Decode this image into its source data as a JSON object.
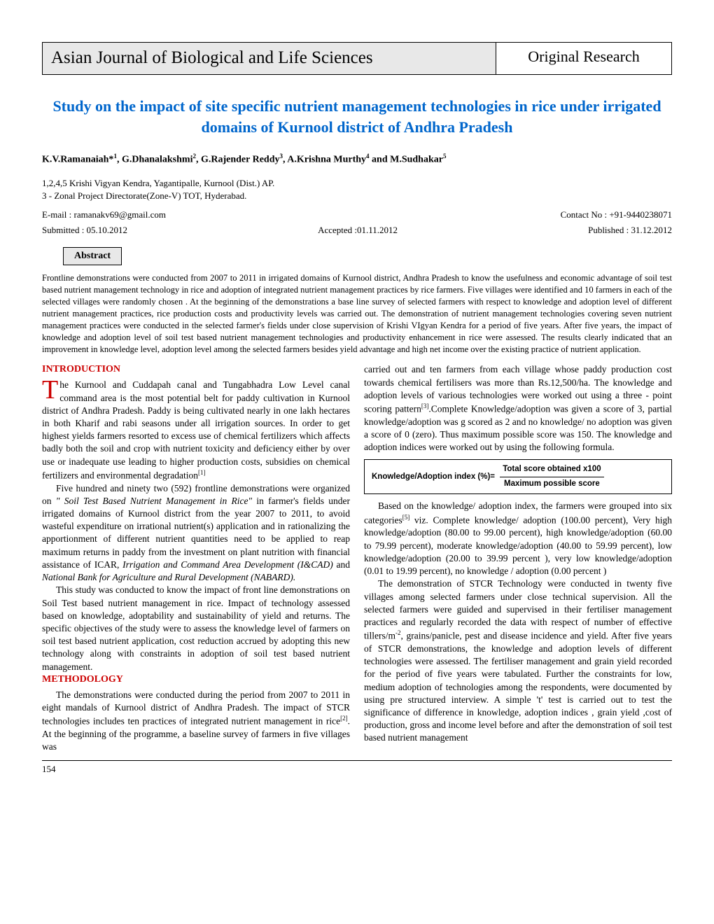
{
  "journal": {
    "name": "Asian Journal of Biological and Life Sciences",
    "category": "Original Research"
  },
  "article": {
    "title": "Study on the impact of site specific nutrient management technologies in rice under irrigated domains of Kurnool district of Andhra Pradesh",
    "authors_html": "K.V.Ramanaiah*<sup>1</sup>, G.Dhanalakshmi<sup>2</sup>, G.Rajender Reddy<sup>3</sup>, A.Krishna Murthy<sup>4</sup> and M.Sudhakar<sup>5</sup>",
    "affiliations": "1,2,4,5 Krishi Vigyan Kendra, Yagantipalle, Kurnool (Dist.) AP.\n3 - Zonal Project Directorate(Zone-V) TOT, Hyderabad.",
    "email": "E-mail : ramanakv69@gmail.com",
    "contact": "Contact No : +91-9440238071",
    "submitted": "Submitted : 05.10.2012",
    "accepted": "Accepted :01.11.2012",
    "published": "Published : 31.12.2012"
  },
  "abstract": {
    "label": "Abstract",
    "text": "Frontline demonstrations were conducted from 2007 to 2011 in irrigated domains of Kurnool district, Andhra Pradesh to know the usefulness and economic advantage of soil test based nutrient management technology in rice and adoption of integrated nutrient management practices by rice farmers. Five villages were identified and 10 farmers in each of the selected villages were randomly chosen . At the beginning of the demonstrations a base line survey of selected farmers with respect to knowledge and adoption level of different nutrient management practices, rice production costs and productivity levels was carried out. The demonstration of nutrient management technologies covering seven nutrient management practices were conducted in the selected farmer's fields under close supervision of Krishi VIgyan Kendra for a period of five years. After five years, the impact of knowledge and adoption level of soil test based nutrient management technologies and productivity enhancement in rice were assessed. The results clearly indicated that an improvement in knowledge level, adoption level among the selected farmers besides yield advantage and high net income over the existing practice of nutrient application."
  },
  "sections": {
    "introduction_heading": "INTRODUCTION",
    "methodology_heading": "METHODOLOGY"
  },
  "body": {
    "intro_p1": "he Kurnool and Cuddapah canal and Tungabhadra Low Level canal command area is the most potential belt for paddy cultivation in Kurnool district of Andhra Pradesh. Paddy is being cultivated nearly in one lakh hectares in both Kharif and rabi seasons under all irrigation sources. In order to get highest yields farmers resorted to excess use of chemical fertilizers which affects badly both the soil and crop with nutrient toxicity and deficiency either by over use or inadequate use leading to higher production costs, subsidies on chemical fertilizers and environmental degradation",
    "intro_p2_html": "Five hundred and ninety two (592) frontline demonstrations were organized on <em>\" Soil Test Based Nutrient Management in Rice\"</em> in farmer's fields under irrigated domains of Kurnool district from the year 2007 to 2011, to avoid wasteful expenditure on irrational nutrient(s) application and in rationalizing the apportionment of different nutrient quantities need to be applied to reap maximum returns in paddy from the investment on plant nutrition with financial assistance of ICAR, <em>Irrigation and Command Area Development (I&CAD)</em> and <em>National Bank for Agriculture and Rural Development (NABARD).</em>",
    "intro_p3": "This study was conducted to know the impact of front line demonstrations on Soil Test based nutrient management in rice. Impact of technology assessed based on knowledge, adoptability and sustainability of yield and returns. The specific objectives of the study were to assess the knowledge level of farmers on soil test based nutrient application, cost reduction accrued by adopting this new technology along with constraints in adoption of soil test based nutrient management.",
    "method_p1_html": "The demonstrations were conducted during the period from 2007 to 2011 in eight mandals of Kurnool district of Andhra Pradesh. The impact of STCR technologies includes ten practices of integrated nutrient management in rice<sup>[2]</sup>. At the beginning of the programme, a baseline survey of farmers in five villages was",
    "right_p1_html": "carried out and ten farmers from each village whose paddy production cost towards chemical fertilisers was more than Rs.12,500/ha. The knowledge and adoption levels of various technologies were worked out using a three - point scoring pattern<sup>[3]</sup>.Complete Knowledge/adoption was given a score of 3, partial knowledge/adoption was g scored as 2 and no knowledge/ no adoption was given a score of 0 (zero). Thus maximum possible score was 150. The knowledge and adoption indices were worked out by using the following formula.",
    "right_p2_html": "Based on the knowledge/ adoption index, the farmers were grouped into six categories<sup>[5]</sup> viz. Complete knowledge/ adoption (100.00 percent), Very high knowledge/adoption (80.00 to 99.00 percent), high knowledge/adoption (60.00 to 79.99 percent), moderate knowledge/adoption (40.00 to 59.99 percent), low knowledge/adoption (20.00 to 39.99 percent ), very low knowledge/adoption (0.01 to 19.99 percent), no knowledge / adoption (0.00 percent )",
    "right_p3_html": "The demonstration of STCR Technology were conducted in twenty five villages among selected farmers under close technical supervision. All the selected farmers were guided and supervised in their fertiliser management practices and regularly recorded the data with respect of number of effective tillers/m<sup>-2</sup>, grains/panicle, pest and disease incidence and yield. After five years of STCR demonstrations, the knowledge and adoption levels of different technologies were assessed. The fertiliser management and grain yield recorded for the period of five years were tabulated. Further the constraints for low, medium adoption of technologies among the respondents, were documented by using pre structured interview. A simple 't' test is carried out to test the significance of difference in knowledge, adoption indices , grain yield ,cost of production, gross and income level before and after the demonstration of soil test based nutrient management"
  },
  "formula": {
    "label": "Knowledge/Adoption index (%)=",
    "numerator": "Total score obtained x100",
    "denominator": "Maximum possible score"
  },
  "page_number": "154",
  "colors": {
    "title_blue": "#0066cc",
    "heading_red": "#cc0000",
    "header_bg": "#e8e8e8"
  }
}
